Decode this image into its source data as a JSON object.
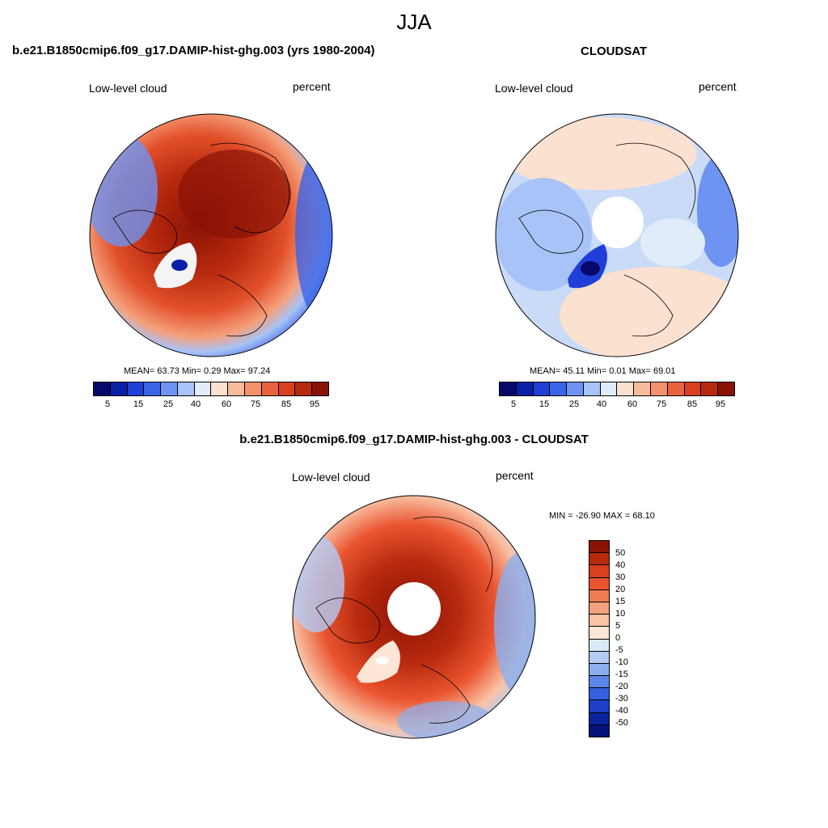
{
  "title": "JJA",
  "panels": {
    "model": {
      "title": "b.e21.B1850cmip6.f09_g17.DAMIP-hist-ghg.003 (yrs 1980-2004)",
      "left_label": "Low-level cloud",
      "right_label": "percent",
      "stats": "MEAN=  63.73  Min=   0.29  Max=  97.24"
    },
    "obs": {
      "title": "CLOUDSAT",
      "left_label": "Low-level cloud",
      "right_label": "percent",
      "stats": "MEAN=  45.11  Min=   0.01  Max=  69.01"
    },
    "diff": {
      "title": "b.e21.B1850cmip6.f09_g17.DAMIP-hist-ghg.003 - CLOUDSAT",
      "left_label": "Low-level cloud",
      "right_label": "percent",
      "stats": "MIN = -26.90 MAX =  68.10"
    }
  },
  "colorbar_abs": {
    "ticks": [
      "5",
      "15",
      "25",
      "40",
      "60",
      "75",
      "85",
      "95"
    ],
    "colors": [
      "#08086b",
      "#0a1fa8",
      "#1f3fd6",
      "#3b63e6",
      "#6e93f2",
      "#a7c3f7",
      "#e0ecfa",
      "#fbe1cf",
      "#f8bc9d",
      "#f4926b",
      "#ea6340",
      "#d9401e",
      "#b82a0e",
      "#8a1205"
    ]
  },
  "colorbar_diff": {
    "ticks": [
      "50",
      "40",
      "30",
      "20",
      "15",
      "10",
      "5",
      "0",
      "-5",
      "-10",
      "-15",
      "-20",
      "-30",
      "-40",
      "-50"
    ],
    "colors": [
      "#8a1205",
      "#b82a0e",
      "#d9401e",
      "#ea5530",
      "#f07a52",
      "#f59f7e",
      "#f9c3a6",
      "#fde6d6",
      "#dbe8f8",
      "#b3cbf5",
      "#8aaef0",
      "#5d86ea",
      "#3560e0",
      "#1c3fc6",
      "#0a23a0",
      "#05127a"
    ]
  },
  "legend_min_max": "MIN = -26.90 MAX =  68.10"
}
